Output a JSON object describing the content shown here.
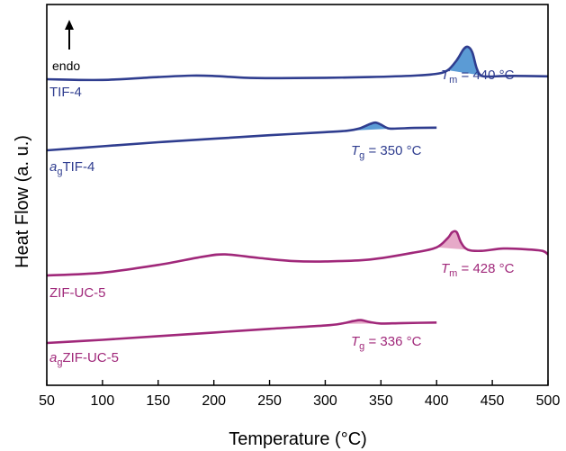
{
  "chart_data": {
    "type": "line",
    "xlabel": "Temperature (°C)",
    "ylabel": "Heat Flow (a. u.)",
    "xlim": [
      50,
      500
    ],
    "xticks": [
      50,
      100,
      150,
      200,
      250,
      300,
      350,
      400,
      450,
      500
    ],
    "grid": false,
    "direction_note": "endo",
    "y_ticks_shown": false,
    "colors": {
      "blue": "#2f3d8f",
      "blue_fill": "#5b9bd5",
      "purple": "#a0287a",
      "purple_fill": "#e6a9c8"
    },
    "series": [
      {
        "name": "TIF-4",
        "name_prefix": "",
        "name_sub": "",
        "name_main": "TIF-4",
        "color": "#2f3d8f",
        "fill_color": "#5b9bd5",
        "x": [
          50,
          100,
          150,
          180,
          200,
          230,
          260,
          300,
          340,
          380,
          400,
          410,
          418,
          424,
          428,
          432,
          436,
          440,
          448,
          460,
          480,
          500
        ],
        "y": [
          0,
          -0.4,
          1.2,
          2.0,
          1.8,
          0.8,
          0.6,
          0.8,
          1.2,
          2.0,
          3.0,
          5.0,
          10.5,
          16.5,
          18.0,
          15.0,
          6.0,
          2.0,
          1.5,
          1.8,
          1.8,
          1.6
        ],
        "peak_region": [
          410,
          445
        ],
        "annotation": {
          "symbol": "T",
          "sub": "m",
          "text": " = 440 °C",
          "x": 440
        }
      },
      {
        "name": "agTIF-4",
        "name_prefix": "a",
        "name_sub": "g",
        "name_main": "TIF-4",
        "color": "#2f3d8f",
        "fill_color": "#5b9bd5",
        "x": [
          50,
          100,
          150,
          200,
          250,
          300,
          320,
          330,
          340,
          345,
          350,
          355,
          360,
          380,
          400
        ],
        "y": [
          0,
          1.6,
          3.2,
          4.6,
          6.0,
          7.2,
          7.8,
          8.6,
          10.4,
          11.0,
          10.2,
          9.0,
          8.6,
          8.9,
          9.0
        ],
        "peak_region": [
          320,
          362
        ],
        "annotation": {
          "symbol": "T",
          "sub": "g",
          "text": " = 350 °C",
          "x": 350
        }
      },
      {
        "name": "ZIF-UC-5",
        "name_prefix": "",
        "name_sub": "",
        "name_main": "ZIF-UC-5",
        "color": "#a0287a",
        "fill_color": "#e6a9c8",
        "x": [
          50,
          100,
          150,
          190,
          210,
          240,
          270,
          300,
          340,
          380,
          400,
          410,
          414,
          418,
          422,
          428,
          440,
          460,
          480,
          495,
          500
        ],
        "y": [
          0,
          1.2,
          4.5,
          8.0,
          9.0,
          7.5,
          6.2,
          6.0,
          6.8,
          9.8,
          12.0,
          16.0,
          18.5,
          18.5,
          14.0,
          11.0,
          10.5,
          11.5,
          11.2,
          10.5,
          9.0
        ],
        "peak_region": [
          400,
          430
        ],
        "annotation": {
          "symbol": "T",
          "sub": "m",
          "text": " = 428 °C",
          "x": 428
        }
      },
      {
        "name": "agZIF-UC-5",
        "name_prefix": "a",
        "name_sub": "g",
        "name_main": "ZIF-UC-5",
        "color": "#a0287a",
        "fill_color": "#e6a9c8",
        "x": [
          50,
          100,
          150,
          200,
          250,
          300,
          315,
          325,
          332,
          340,
          350,
          370,
          400
        ],
        "y": [
          0,
          1.3,
          2.8,
          4.3,
          5.8,
          7.2,
          8.0,
          9.0,
          9.4,
          8.6,
          8.0,
          8.2,
          8.4
        ],
        "peak_region": [
          312,
          350
        ],
        "annotation": {
          "symbol": "T",
          "sub": "g",
          "text": " = 336 °C",
          "x": 336
        }
      }
    ]
  }
}
